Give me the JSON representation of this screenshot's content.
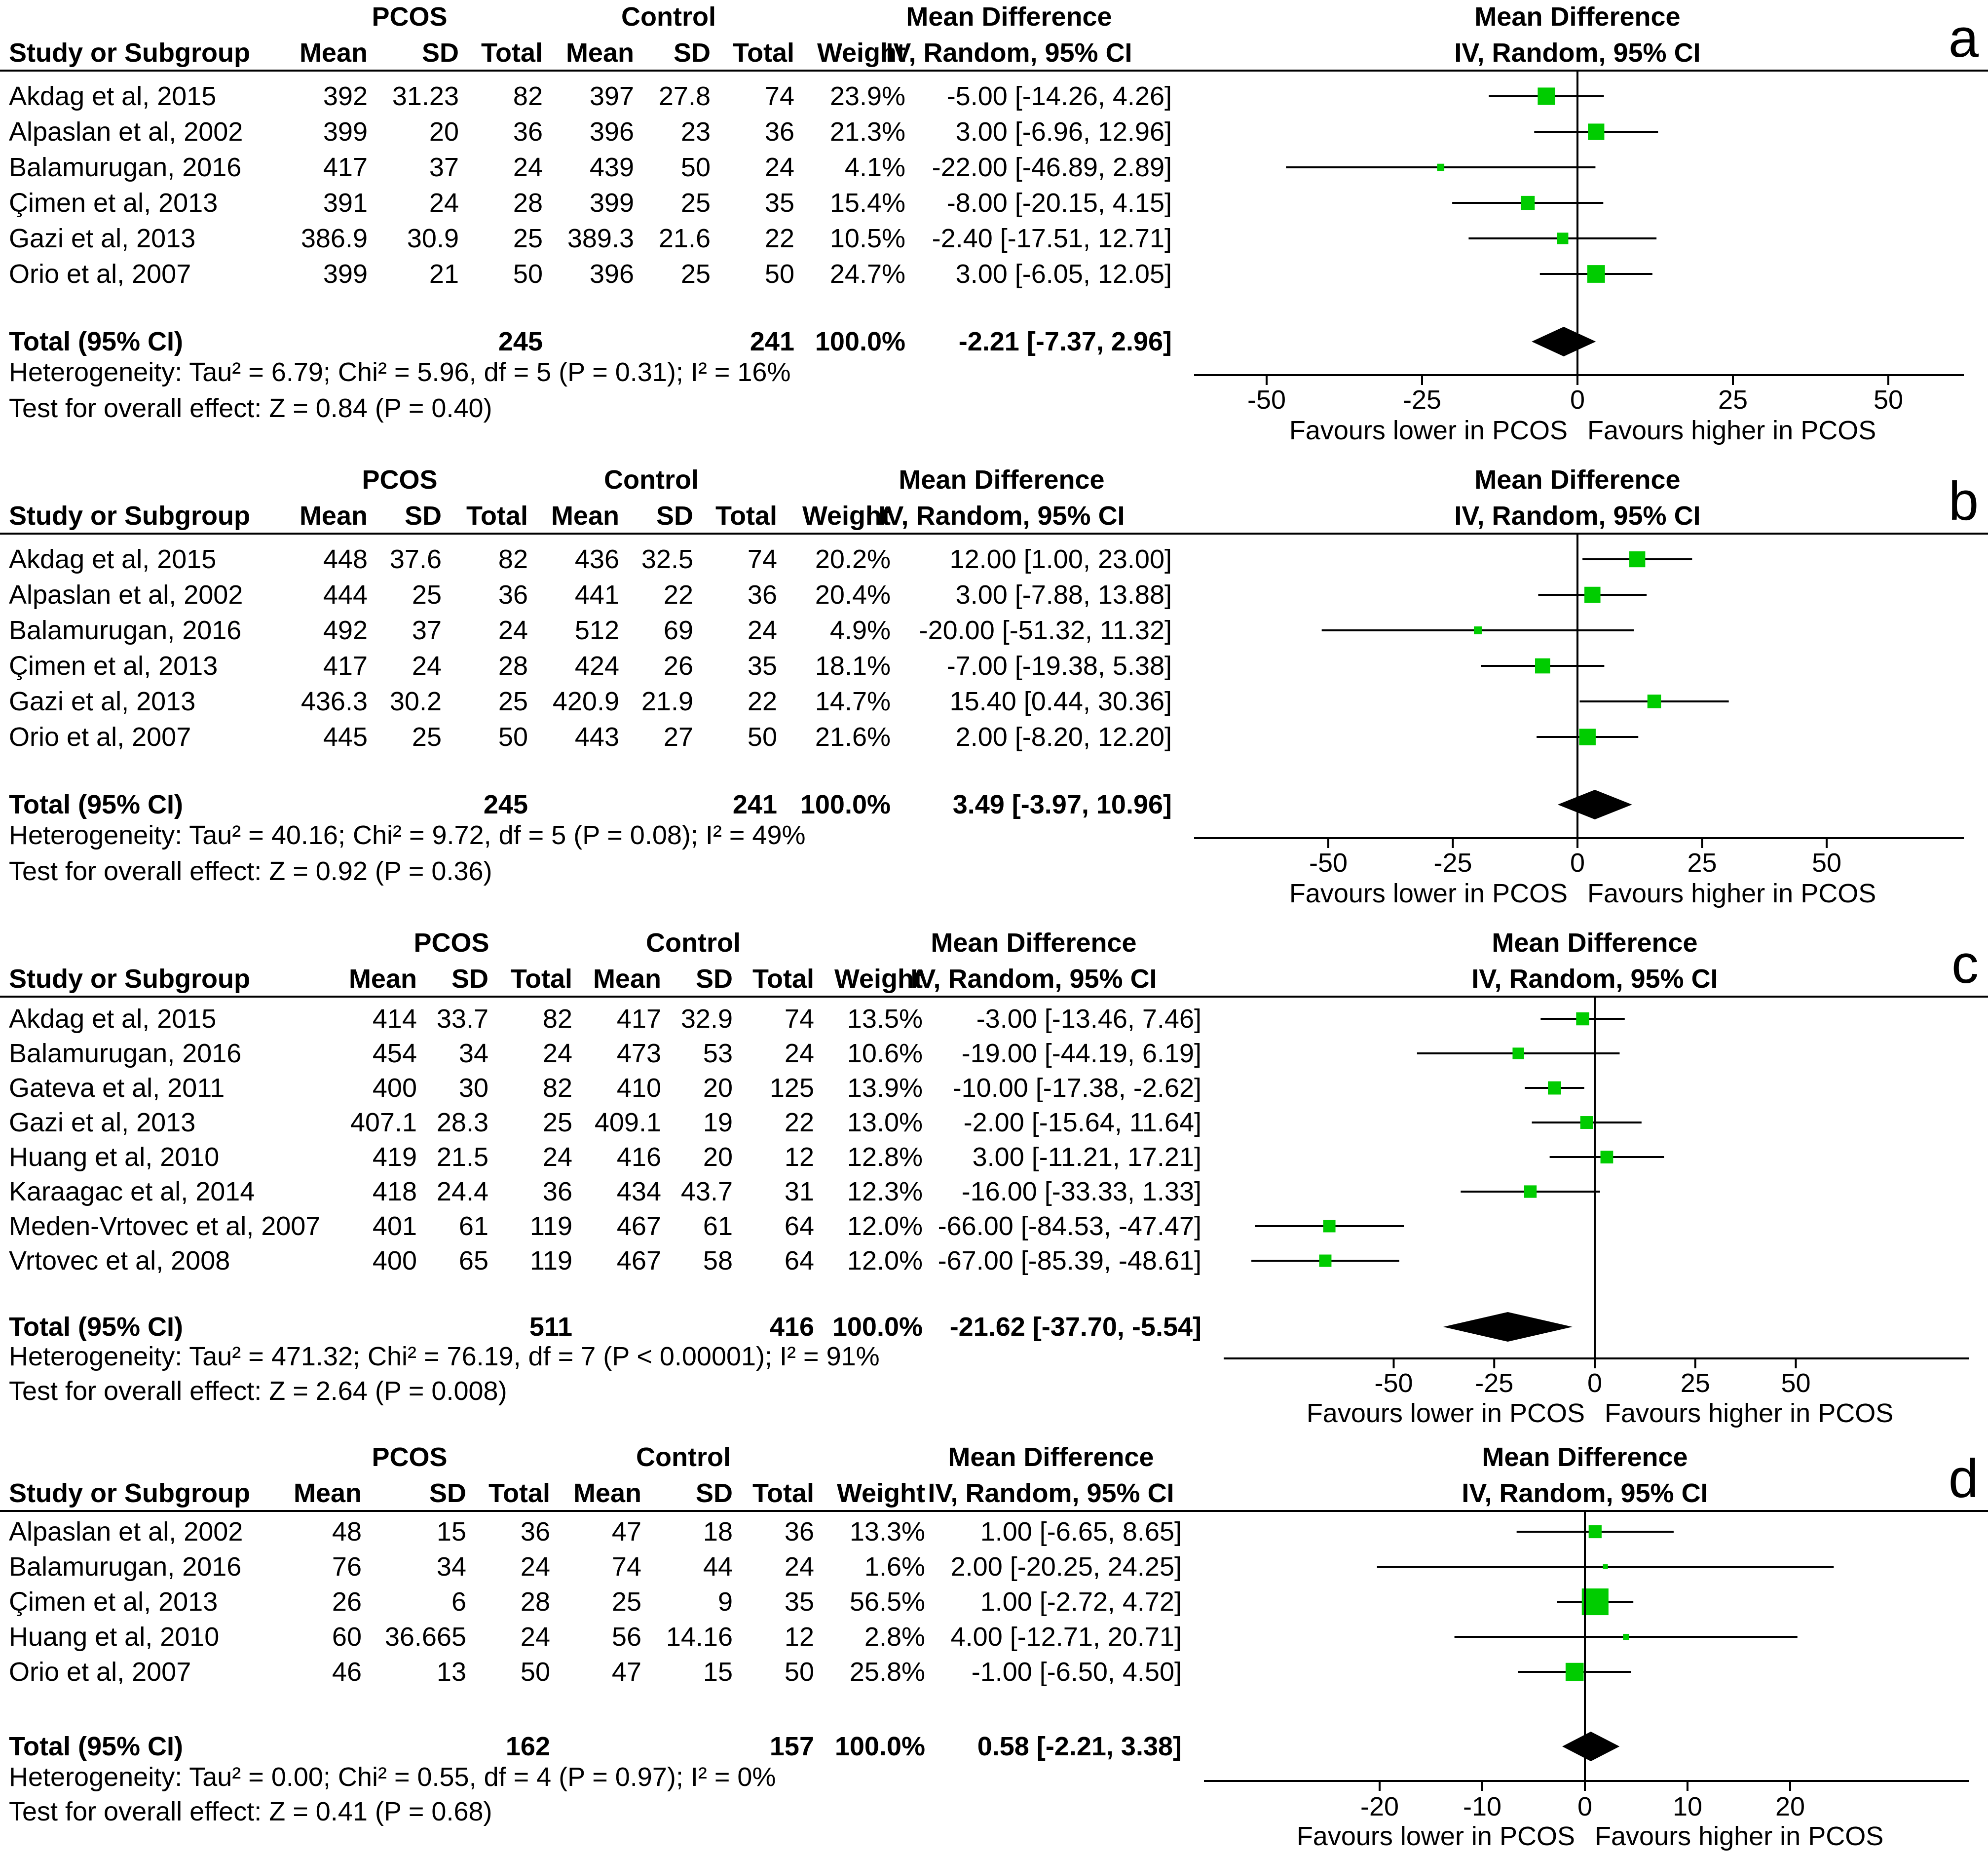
{
  "chart_data": [
    {
      "panel": "a",
      "type": "forest",
      "group1": "PCOS",
      "group2": "Control",
      "headers": {
        "study": "Study or Subgroup",
        "mean": "Mean",
        "sd": "SD",
        "total": "Total",
        "weight": "Weight",
        "effect": "Mean Difference",
        "method": "IV, Random, 95% CI"
      },
      "studies": [
        {
          "name": "Akdag et al, 2015",
          "m1": "392",
          "sd1": "31.23",
          "n1": "82",
          "m2": "397",
          "sd2": "27.8",
          "n2": "74",
          "weight": "23.9%",
          "ci_text": "-5.00 [-14.26, 4.26]",
          "md": -5.0,
          "lo": -14.26,
          "hi": 4.26,
          "w": 23.9
        },
        {
          "name": "Alpaslan et al, 2002",
          "m1": "399",
          "sd1": "20",
          "n1": "36",
          "m2": "396",
          "sd2": "23",
          "n2": "36",
          "weight": "21.3%",
          "ci_text": "3.00 [-6.96, 12.96]",
          "md": 3.0,
          "lo": -6.96,
          "hi": 12.96,
          "w": 21.3
        },
        {
          "name": "Balamurugan, 2016",
          "m1": "417",
          "sd1": "37",
          "n1": "24",
          "m2": "439",
          "sd2": "50",
          "n2": "24",
          "weight": "4.1%",
          "ci_text": "-22.00 [-46.89, 2.89]",
          "md": -22.0,
          "lo": -46.89,
          "hi": 2.89,
          "w": 4.1
        },
        {
          "name": "Çimen et al, 2013",
          "m1": "391",
          "sd1": "24",
          "n1": "28",
          "m2": "399",
          "sd2": "25",
          "n2": "35",
          "weight": "15.4%",
          "ci_text": "-8.00 [-20.15, 4.15]",
          "md": -8.0,
          "lo": -20.15,
          "hi": 4.15,
          "w": 15.4
        },
        {
          "name": "Gazi et al, 2013",
          "m1": "386.9",
          "sd1": "30.9",
          "n1": "25",
          "m2": "389.3",
          "sd2": "21.6",
          "n2": "22",
          "weight": "10.5%",
          "ci_text": "-2.40 [-17.51, 12.71]",
          "md": -2.4,
          "lo": -17.51,
          "hi": 12.71,
          "w": 10.5
        },
        {
          "name": "Orio et al, 2007",
          "m1": "399",
          "sd1": "21",
          "n1": "50",
          "m2": "396",
          "sd2": "25",
          "n2": "50",
          "weight": "24.7%",
          "ci_text": "3.00 [-6.05, 12.05]",
          "md": 3.0,
          "lo": -6.05,
          "hi": 12.05,
          "w": 24.7
        }
      ],
      "total": {
        "label": "Total (95% CI)",
        "n1": "245",
        "n2": "241",
        "weight": "100.0%",
        "ci_text": "-2.21 [-7.37, 2.96]",
        "md": -2.21,
        "lo": -7.37,
        "hi": 2.96
      },
      "heterogeneity": "Heterogeneity: Tau² = 6.79; Chi² = 5.96, df = 5 (P = 0.31); I² = 16%",
      "overall": "Test for overall effect: Z = 0.84 (P = 0.40)",
      "axis": {
        "min": -60,
        "max": 60,
        "ticks": [
          -50,
          -25,
          0,
          25,
          50
        ]
      },
      "favours_left": "Favours lower in PCOS",
      "favours_right": "Favours higher in PCOS"
    },
    {
      "panel": "b",
      "type": "forest",
      "group1": "PCOS",
      "group2": "Control",
      "headers": {
        "study": "Study or Subgroup",
        "mean": "Mean",
        "sd": "SD",
        "total": "Total",
        "weight": "Weight",
        "effect": "Mean Difference",
        "method": "IV, Random, 95% CI"
      },
      "studies": [
        {
          "name": "Akdag et al, 2015",
          "m1": "448",
          "sd1": "37.6",
          "n1": "82",
          "m2": "436",
          "sd2": "32.5",
          "n2": "74",
          "weight": "20.2%",
          "ci_text": "12.00 [1.00, 23.00]",
          "md": 12.0,
          "lo": 1.0,
          "hi": 23.0,
          "w": 20.2
        },
        {
          "name": "Alpaslan et al, 2002",
          "m1": "444",
          "sd1": "25",
          "n1": "36",
          "m2": "441",
          "sd2": "22",
          "n2": "36",
          "weight": "20.4%",
          "ci_text": "3.00 [-7.88, 13.88]",
          "md": 3.0,
          "lo": -7.88,
          "hi": 13.88,
          "w": 20.4
        },
        {
          "name": "Balamurugan, 2016",
          "m1": "492",
          "sd1": "37",
          "n1": "24",
          "m2": "512",
          "sd2": "69",
          "n2": "24",
          "weight": "4.9%",
          "ci_text": "-20.00 [-51.32, 11.32]",
          "md": -20.0,
          "lo": -51.32,
          "hi": 11.32,
          "w": 4.9
        },
        {
          "name": "Çimen et al, 2013",
          "m1": "417",
          "sd1": "24",
          "n1": "28",
          "m2": "424",
          "sd2": "26",
          "n2": "35",
          "weight": "18.1%",
          "ci_text": "-7.00 [-19.38, 5.38]",
          "md": -7.0,
          "lo": -19.38,
          "hi": 5.38,
          "w": 18.1
        },
        {
          "name": "Gazi et al, 2013",
          "m1": "436.3",
          "sd1": "30.2",
          "n1": "25",
          "m2": "420.9",
          "sd2": "21.9",
          "n2": "22",
          "weight": "14.7%",
          "ci_text": "15.40 [0.44, 30.36]",
          "md": 15.4,
          "lo": 0.44,
          "hi": 30.36,
          "w": 14.7
        },
        {
          "name": "Orio et al, 2007",
          "m1": "445",
          "sd1": "25",
          "n1": "50",
          "m2": "443",
          "sd2": "27",
          "n2": "50",
          "weight": "21.6%",
          "ci_text": "2.00 [-8.20, 12.20]",
          "md": 2.0,
          "lo": -8.2,
          "hi": 12.2,
          "w": 21.6
        }
      ],
      "total": {
        "label": "Total (95% CI)",
        "n1": "245",
        "n2": "241",
        "weight": "100.0%",
        "ci_text": "3.49 [-3.97, 10.96]",
        "md": 3.49,
        "lo": -3.97,
        "hi": 10.96
      },
      "heterogeneity": "Heterogeneity: Tau² = 40.16; Chi² = 9.72, df = 5 (P = 0.08); I² = 49%",
      "overall": "Test for overall effect: Z = 0.92 (P = 0.36)",
      "axis": {
        "min": -77,
        "max": 77,
        "ticks": [
          -50,
          -25,
          0,
          25,
          50
        ]
      },
      "favours_left": "Favours lower in PCOS",
      "favours_right": "Favours higher in PCOS"
    },
    {
      "panel": "c",
      "type": "forest",
      "group1": "PCOS",
      "group2": "Control",
      "headers": {
        "study": "Study or Subgroup",
        "mean": "Mean",
        "sd": "SD",
        "total": "Total",
        "weight": "Weight",
        "effect": "Mean Difference",
        "method": "IV, Random, 95% CI"
      },
      "studies": [
        {
          "name": "Akdag et al, 2015",
          "m1": "414",
          "sd1": "33.7",
          "n1": "82",
          "m2": "417",
          "sd2": "32.9",
          "n2": "74",
          "weight": "13.5%",
          "ci_text": "-3.00 [-13.46, 7.46]",
          "md": -3.0,
          "lo": -13.46,
          "hi": 7.46,
          "w": 13.5
        },
        {
          "name": "Balamurugan, 2016",
          "m1": "454",
          "sd1": "34",
          "n1": "24",
          "m2": "473",
          "sd2": "53",
          "n2": "24",
          "weight": "10.6%",
          "ci_text": "-19.00 [-44.19, 6.19]",
          "md": -19.0,
          "lo": -44.19,
          "hi": 6.19,
          "w": 10.6
        },
        {
          "name": "Gateva et al, 2011",
          "m1": "400",
          "sd1": "30",
          "n1": "82",
          "m2": "410",
          "sd2": "20",
          "n2": "125",
          "weight": "13.9%",
          "ci_text": "-10.00 [-17.38, -2.62]",
          "md": -10.0,
          "lo": -17.38,
          "hi": -2.62,
          "w": 13.9
        },
        {
          "name": "Gazi et al, 2013",
          "m1": "407.1",
          "sd1": "28.3",
          "n1": "25",
          "m2": "409.1",
          "sd2": "19",
          "n2": "22",
          "weight": "13.0%",
          "ci_text": "-2.00 [-15.64, 11.64]",
          "md": -2.0,
          "lo": -15.64,
          "hi": 11.64,
          "w": 13.0
        },
        {
          "name": "Huang et al, 2010",
          "m1": "419",
          "sd1": "21.5",
          "n1": "24",
          "m2": "416",
          "sd2": "20",
          "n2": "12",
          "weight": "12.8%",
          "ci_text": "3.00 [-11.21, 17.21]",
          "md": 3.0,
          "lo": -11.21,
          "hi": 17.21,
          "w": 12.8
        },
        {
          "name": "Karaagac et al, 2014",
          "m1": "418",
          "sd1": "24.4",
          "n1": "36",
          "m2": "434",
          "sd2": "43.7",
          "n2": "31",
          "weight": "12.3%",
          "ci_text": "-16.00 [-33.33, 1.33]",
          "md": -16.0,
          "lo": -33.33,
          "hi": 1.33,
          "w": 12.3
        },
        {
          "name": "Meden-Vrtovec et al, 2007",
          "m1": "401",
          "sd1": "61",
          "n1": "119",
          "m2": "467",
          "sd2": "61",
          "n2": "64",
          "weight": "12.0%",
          "ci_text": "-66.00 [-84.53, -47.47]",
          "md": -66.0,
          "lo": -84.53,
          "hi": -47.47,
          "w": 12.0
        },
        {
          "name": "Vrtovec et al, 2008",
          "m1": "400",
          "sd1": "65",
          "n1": "119",
          "m2": "467",
          "sd2": "58",
          "n2": "64",
          "weight": "12.0%",
          "ci_text": "-67.00 [-85.39, -48.61]",
          "md": -67.0,
          "lo": -85.39,
          "hi": -48.61,
          "w": 12.0
        }
      ],
      "total": {
        "label": "Total (95% CI)",
        "n1": "511",
        "n2": "416",
        "weight": "100.0%",
        "ci_text": "-21.62 [-37.70, -5.54]",
        "md": -21.62,
        "lo": -37.7,
        "hi": -5.54
      },
      "heterogeneity": "Heterogeneity: Tau² = 471.32; Chi² = 76.19, df = 7 (P < 0.00001); I² = 91%",
      "overall": "Test for overall effect: Z = 2.64 (P = 0.008)",
      "axis": {
        "min": -92,
        "max": 92,
        "ticks": [
          -50,
          -25,
          0,
          25,
          50
        ]
      },
      "favours_left": "Favours lower in PCOS",
      "favours_right": "Favours higher in PCOS"
    },
    {
      "panel": "d",
      "type": "forest",
      "group1": "PCOS",
      "group2": "Control",
      "headers": {
        "study": "Study or Subgroup",
        "mean": "Mean",
        "sd": "SD",
        "total": "Total",
        "weight": "Weight",
        "effect": "Mean Difference",
        "method": "IV, Random, 95% CI"
      },
      "studies": [
        {
          "name": "Alpaslan et al, 2002",
          "m1": "48",
          "sd1": "15",
          "n1": "36",
          "m2": "47",
          "sd2": "18",
          "n2": "36",
          "weight": "13.3%",
          "ci_text": "1.00 [-6.65, 8.65]",
          "md": 1.0,
          "lo": -6.65,
          "hi": 8.65,
          "w": 13.3
        },
        {
          "name": "Balamurugan, 2016",
          "m1": "76",
          "sd1": "34",
          "n1": "24",
          "m2": "74",
          "sd2": "44",
          "n2": "24",
          "weight": "1.6%",
          "ci_text": "2.00 [-20.25, 24.25]",
          "md": 2.0,
          "lo": -20.25,
          "hi": 24.25,
          "w": 1.6
        },
        {
          "name": "Çimen et al, 2013",
          "m1": "26",
          "sd1": "6",
          "n1": "28",
          "m2": "25",
          "sd2": "9",
          "n2": "35",
          "weight": "56.5%",
          "ci_text": "1.00 [-2.72, 4.72]",
          "md": 1.0,
          "lo": -2.72,
          "hi": 4.72,
          "w": 56.5
        },
        {
          "name": "Huang et al, 2010",
          "m1": "60",
          "sd1": "36.665",
          "n1": "24",
          "m2": "56",
          "sd2": "14.16",
          "n2": "12",
          "weight": "2.8%",
          "ci_text": "4.00 [-12.71, 20.71]",
          "md": 4.0,
          "lo": -12.71,
          "hi": 20.71,
          "w": 2.8
        },
        {
          "name": "Orio et al, 2007",
          "m1": "46",
          "sd1": "13",
          "n1": "50",
          "m2": "47",
          "sd2": "15",
          "n2": "50",
          "weight": "25.8%",
          "ci_text": "-1.00 [-6.50, 4.50]",
          "md": -1.0,
          "lo": -6.5,
          "hi": 4.5,
          "w": 25.8
        }
      ],
      "total": {
        "label": "Total (95% CI)",
        "n1": "162",
        "n2": "157",
        "weight": "100.0%",
        "ci_text": "0.58 [-2.21, 3.38]",
        "md": 0.58,
        "lo": -2.21,
        "hi": 3.38
      },
      "heterogeneity": "Heterogeneity: Tau² = 0.00; Chi² = 0.55, df = 4 (P = 0.97); I² = 0%",
      "overall": "Test for overall effect: Z = 0.41 (P = 0.68)",
      "axis": {
        "min": -37,
        "max": 37,
        "ticks": [
          -20,
          -10,
          0,
          10,
          20
        ]
      },
      "favours_left": "Favours lower in PCOS",
      "favours_right": "Favours higher in PCOS"
    }
  ],
  "colors": {
    "marker": "#00cc00",
    "diamond": "#000000",
    "panel_label": "#cc0000"
  }
}
